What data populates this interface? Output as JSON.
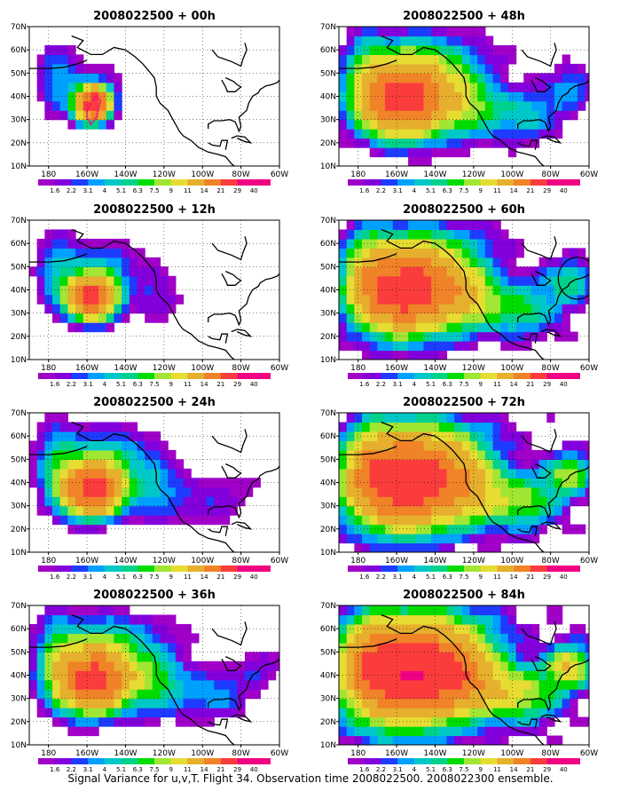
{
  "caption": "Signal Variance for u,v,T. Flight 34. Observation time 2008022500. 2008022300 ensemble.",
  "colors": {
    "levels": [
      "#a000c8",
      "#8200dc",
      "#1e3cff",
      "#00a0ff",
      "#00c8c8",
      "#00d28c",
      "#00dc00",
      "#a0e632",
      "#e6dc32",
      "#e6af2d",
      "#f08228",
      "#fa3c3c",
      "#f00082"
    ],
    "land_outline": "#000000",
    "grid": "#000000"
  },
  "chart_data": {
    "type": "heatmap",
    "colorbar_labels": [
      "1.6",
      "2.2",
      "3.1",
      "4",
      "5.1",
      "6.3",
      "7.5",
      "9",
      "11",
      "14",
      "21",
      "29",
      "40"
    ],
    "x_ticks": [
      "180",
      "160W",
      "140W",
      "120W",
      "100W",
      "80W",
      "60W"
    ],
    "y_ticks": [
      "10N",
      "20N",
      "30N",
      "40N",
      "50N",
      "60N",
      "70N"
    ],
    "xlim": [
      -190,
      -60
    ],
    "ylim": [
      10,
      70
    ],
    "panels": [
      {
        "title": "2008022500 + 00h",
        "hours": 0
      },
      {
        "title": "2008022500 + 12h",
        "hours": 12
      },
      {
        "title": "2008022500 + 24h",
        "hours": 24
      },
      {
        "title": "2008022500 + 36h",
        "hours": 36
      },
      {
        "title": "2008022500 + 48h",
        "hours": 48
      },
      {
        "title": "2008022500 + 60h",
        "hours": 60
      },
      {
        "title": "2008022500 + 72h",
        "hours": 72
      },
      {
        "title": "2008022500 + 84h",
        "hours": 84
      }
    ],
    "flight_track": [
      [
        -158,
        37
      ],
      [
        -160,
        34
      ],
      [
        -160,
        31
      ],
      [
        -158,
        28
      ],
      [
        -155,
        31
      ],
      [
        -154,
        35
      ],
      [
        -153,
        38
      ],
      [
        -155,
        40
      ],
      [
        -157,
        38
      ]
    ],
    "circle_60h": {
      "lon": -66,
      "lat": 45,
      "r_lon": 10,
      "r_lat": 9
    }
  }
}
